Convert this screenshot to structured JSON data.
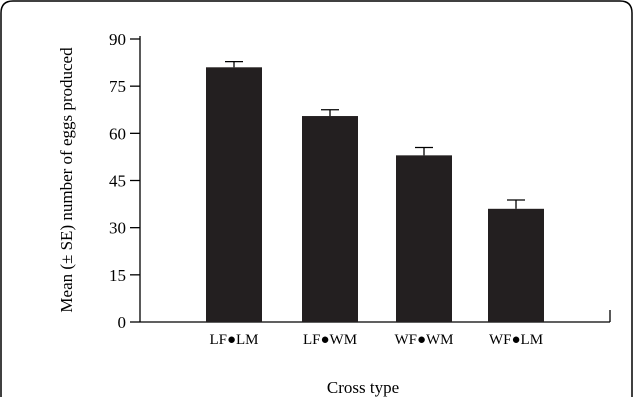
{
  "chart_data": {
    "type": "bar",
    "title": "",
    "xlabel": "Cross type",
    "ylabel": "Mean (± SE) number of eggs produced",
    "ylim": [
      0,
      90
    ],
    "yticks": [
      0,
      15,
      30,
      45,
      60,
      75,
      90
    ],
    "categories": [
      "LF●LM",
      "LF●WM",
      "WF●WM",
      "WF●LM"
    ],
    "values": [
      81,
      65.5,
      53,
      36
    ],
    "errors": [
      1.8,
      2.0,
      2.5,
      2.8
    ],
    "grid": false,
    "legend": "none",
    "bar_color": "#231f20",
    "frame_color": "#000000"
  }
}
